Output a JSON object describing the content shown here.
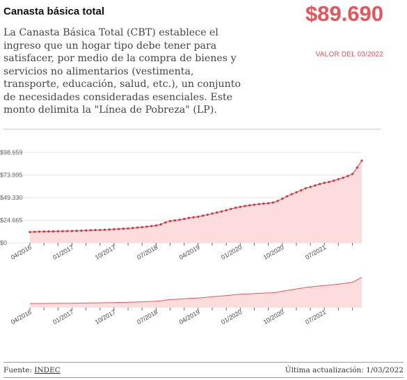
{
  "header": {
    "title": "Canasta básica total",
    "description": "La Canasta Básica Total (CBT) establece el ingreso que un hogar tipo debe tener para satisfacer, por medio de la compra de bienes y servicios no alimentarios (vestimenta, transporte, educación, salud, etc.), un conjunto de necesidades consideradas esenciales. Este monto delimita la \"Línea de Pobreza\" (LP).",
    "value": "$89.690",
    "value_date": "VALOR DEL 03/2022"
  },
  "footer": {
    "source_prefix": "Fuente: ",
    "source_link": "INDEC",
    "updated": "Última actualización: 1/03/2022"
  },
  "colors": {
    "accent": "#e8545a",
    "area_fill": "#fcdcdc",
    "line": "#e8545a",
    "marker": "#c0393f"
  },
  "chart_data": {
    "type": "area",
    "y_ticks": [
      "$0",
      "$24.665",
      "$49.330",
      "$73.995",
      "$98.659"
    ],
    "y_tick_values": [
      0,
      24665,
      49330,
      73995,
      98659
    ],
    "ylim": [
      0,
      98659
    ],
    "x_ticks": [
      "04/2016",
      "01/2017",
      "10/2017",
      "07/2018",
      "04/2019",
      "01/2020",
      "10/2020",
      "07/2021"
    ],
    "grid": true,
    "x_start": "04/2016",
    "x_end": "03/2022",
    "values": [
      11900,
      12100,
      12300,
      12400,
      12500,
      12600,
      12700,
      12800,
      12900,
      13000,
      13200,
      13400,
      13600,
      13800,
      14000,
      14100,
      14300,
      14600,
      14900,
      15200,
      15500,
      15800,
      16200,
      16700,
      17200,
      17700,
      18300,
      19000,
      20200,
      22300,
      23800,
      24500,
      25200,
      26100,
      27200,
      27900,
      28600,
      29700,
      30800,
      32000,
      33200,
      34300,
      35600,
      37000,
      38300,
      39300,
      40200,
      41000,
      41700,
      42300,
      42800,
      43300,
      44000,
      45700,
      48300,
      50800,
      53100,
      55200,
      57400,
      59600,
      61000,
      62600,
      64100,
      65500,
      66400,
      67900,
      69500,
      71100,
      72900,
      75100,
      82100,
      89690
    ]
  }
}
